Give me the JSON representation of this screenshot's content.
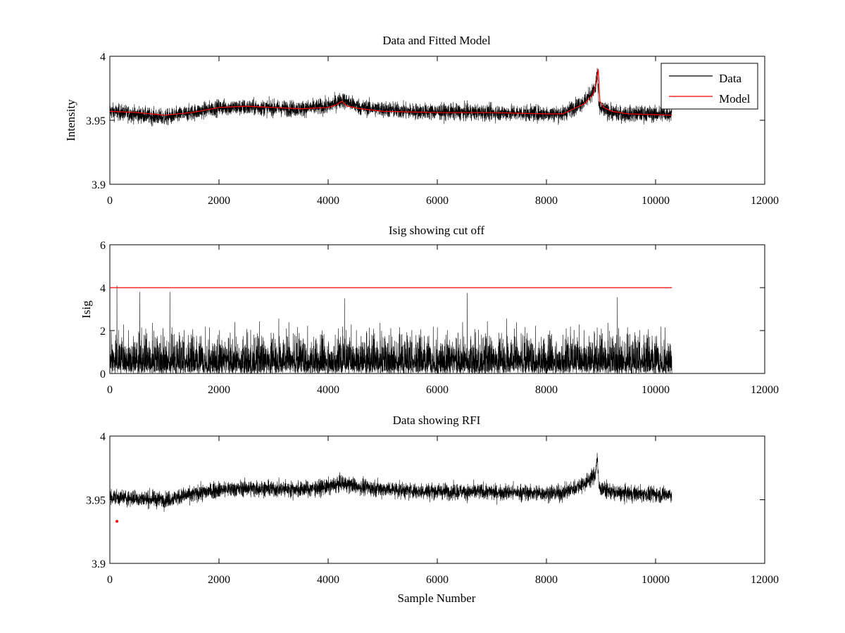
{
  "figure": {
    "xlabel": "Sample Number"
  },
  "chart_data": [
    {
      "type": "line",
      "title": "Data and Fitted Model",
      "xlabel": "",
      "ylabel": "Intensity",
      "xlim": [
        0,
        12000
      ],
      "ylim": [
        3.9,
        4.0
      ],
      "xticks": [
        0,
        2000,
        4000,
        6000,
        8000,
        10000,
        12000
      ],
      "xtick_labels": [
        "0",
        "2000",
        "4000",
        "6000",
        "8000",
        "10000",
        "12000"
      ],
      "yticks": [
        3.9,
        3.95,
        4.0
      ],
      "ytick_labels": [
        "3.9",
        "3.95",
        "4"
      ],
      "legend": {
        "position": "top-right",
        "entries": [
          "Data",
          "Model"
        ]
      },
      "grid": false,
      "series": [
        {
          "name": "Data",
          "color": "#000000",
          "render": "noisy",
          "n_samples": 10300,
          "noise_halfwidth": 0.007,
          "baseline_x": [
            0,
            1000,
            2000,
            2600,
            3500,
            4000,
            4250,
            4600,
            5500,
            7000,
            8300,
            8700,
            8900,
            8930,
            8960,
            9050,
            9300,
            10300
          ],
          "baseline_y": [
            3.957,
            3.952,
            3.96,
            3.96,
            3.959,
            3.961,
            3.966,
            3.96,
            3.957,
            3.956,
            3.955,
            3.965,
            3.975,
            3.99,
            3.96,
            3.958,
            3.955,
            3.955
          ]
        },
        {
          "name": "Model",
          "color": "#ff0000",
          "x": [
            0,
            500,
            1000,
            1500,
            2000,
            2500,
            3000,
            3500,
            4000,
            4150,
            4250,
            4350,
            4600,
            5000,
            6000,
            7000,
            8000,
            8300,
            8500,
            8700,
            8850,
            8920,
            8950,
            8980,
            9050,
            9200,
            9500,
            10300
          ],
          "y": [
            3.957,
            3.956,
            3.954,
            3.956,
            3.96,
            3.961,
            3.96,
            3.959,
            3.96,
            3.962,
            3.965,
            3.961,
            3.959,
            3.957,
            3.956,
            3.956,
            3.955,
            3.955,
            3.959,
            3.963,
            3.97,
            3.98,
            3.99,
            3.965,
            3.96,
            3.957,
            3.955,
            3.954
          ]
        }
      ]
    },
    {
      "type": "line",
      "title": "Isig showing cut off",
      "xlabel": "",
      "ylabel": "Isig",
      "xlim": [
        0,
        12000
      ],
      "ylim": [
        0,
        6
      ],
      "xticks": [
        0,
        2000,
        4000,
        6000,
        8000,
        10000,
        12000
      ],
      "xtick_labels": [
        "0",
        "2000",
        "4000",
        "6000",
        "8000",
        "10000",
        "12000"
      ],
      "yticks": [
        0,
        2,
        4,
        6
      ],
      "ytick_labels": [
        "0",
        "2",
        "4",
        "6"
      ],
      "grid": false,
      "series": [
        {
          "name": "Isig",
          "color": "#000000",
          "render": "abs-noise",
          "n_samples": 10300,
          "typical_max": 2.0,
          "spikes": [
            [
              130,
              4.1
            ],
            [
              550,
              3.8
            ],
            [
              1100,
              3.8
            ],
            [
              4300,
              3.5
            ],
            [
              6550,
              3.75
            ],
            [
              9300,
              3.55
            ]
          ]
        },
        {
          "name": "Cut off",
          "color": "#ff0000",
          "x": [
            0,
            10300
          ],
          "y": [
            4,
            4
          ]
        }
      ]
    },
    {
      "type": "line",
      "title": "Data showing RFI",
      "xlabel": "Sample Number",
      "ylabel": "",
      "xlim": [
        0,
        12000
      ],
      "ylim": [
        3.9,
        4.0
      ],
      "xticks": [
        0,
        2000,
        4000,
        6000,
        8000,
        10000,
        12000
      ],
      "xtick_labels": [
        "0",
        "2000",
        "4000",
        "6000",
        "8000",
        "10000",
        "12000"
      ],
      "yticks": [
        3.9,
        3.95,
        4.0
      ],
      "ytick_labels": [
        "3.9",
        "3.95",
        "4"
      ],
      "grid": false,
      "series": [
        {
          "name": "Data",
          "color": "#000000",
          "render": "noisy",
          "n_samples": 10300,
          "noise_halfwidth": 0.007,
          "baseline_x": [
            0,
            1000,
            2000,
            2600,
            3500,
            4000,
            4250,
            4600,
            5500,
            7000,
            8300,
            8700,
            8900,
            8930,
            8960,
            9050,
            9300,
            10300
          ],
          "baseline_y": [
            3.952,
            3.95,
            3.958,
            3.959,
            3.958,
            3.96,
            3.963,
            3.96,
            3.957,
            3.956,
            3.955,
            3.963,
            3.97,
            3.985,
            3.96,
            3.958,
            3.955,
            3.954
          ]
        },
        {
          "name": "RFI",
          "color": "#ff0000",
          "render": "markers",
          "x": [
            130
          ],
          "y": [
            3.933
          ]
        }
      ]
    }
  ]
}
